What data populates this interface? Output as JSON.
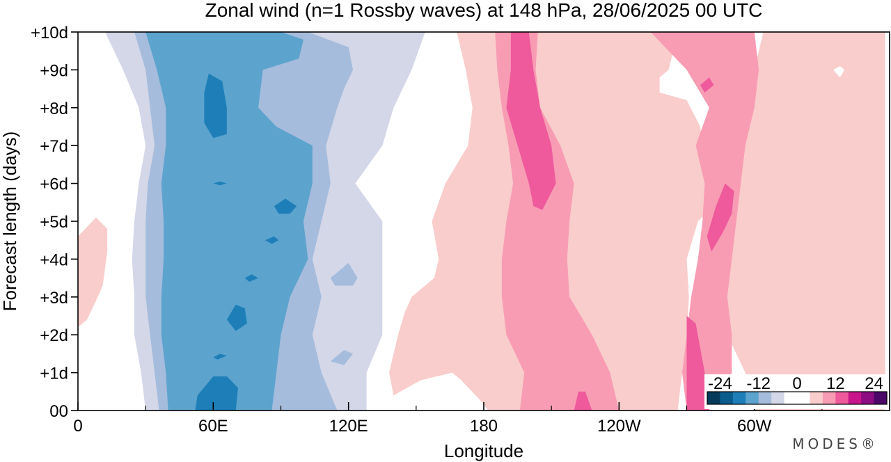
{
  "chart_data": {
    "type": "heatmap",
    "title": "Zonal wind (n=1 Rossby waves) at 148 hPa,  28/06/2025  00 UTC",
    "xlabel": "Longitude",
    "ylabel": "Forecast length (days)",
    "x_ticks": [
      "0",
      "60E",
      "120E",
      "180",
      "120W",
      "60W"
    ],
    "x_tick_values": [
      0,
      60,
      120,
      180,
      240,
      300
    ],
    "y_ticks": [
      "00",
      "+1d",
      "+2d",
      "+3d",
      "+4d",
      "+5d",
      "+6d",
      "+7d",
      "+8d",
      "+9d",
      "+10d"
    ],
    "xlim": [
      0,
      360
    ],
    "ylim": [
      0,
      10
    ],
    "colorbar": {
      "labels": [
        "-24",
        "-12",
        "0",
        "12",
        "24"
      ],
      "levels": [
        -28,
        -24,
        -20,
        -16,
        -12,
        -8,
        -4,
        4,
        8,
        12,
        16,
        20,
        24,
        28
      ],
      "colors": [
        "#063a5a",
        "#0a5c8c",
        "#1e7fb8",
        "#5ca3ce",
        "#a5bcdc",
        "#d4d7e8",
        "#ffffff",
        "#ffffff",
        "#f9cdcb",
        "#f89cb4",
        "#ee5a9c",
        "#c8168a",
        "#8e0c82",
        "#4b0868"
      ]
    },
    "bands": [
      {
        "name": "neg4",
        "level": -4,
        "color": "#d4d7e8",
        "polygon": [
          [
            12,
            10
          ],
          [
            33,
            10
          ],
          [
            60,
            10
          ],
          [
            90,
            10
          ],
          [
            125,
            10
          ],
          [
            154,
            10
          ],
          [
            148,
            9
          ],
          [
            140,
            8
          ],
          [
            135,
            7
          ],
          [
            123,
            6
          ],
          [
            135,
            5
          ],
          [
            135,
            4
          ],
          [
            135,
            3
          ],
          [
            135,
            2
          ],
          [
            128,
            1
          ],
          [
            128,
            0
          ],
          [
            30,
            0
          ],
          [
            28,
            1
          ],
          [
            25,
            2
          ],
          [
            25,
            3
          ],
          [
            24,
            4
          ],
          [
            25,
            5
          ],
          [
            27,
            6
          ],
          [
            30,
            7
          ],
          [
            27,
            8
          ],
          [
            20,
            9
          ]
        ]
      },
      {
        "name": "neg8",
        "level": -8,
        "color": "#a5bcdc",
        "polygon": [
          [
            25,
            10
          ],
          [
            54,
            10
          ],
          [
            80,
            10
          ],
          [
            102,
            10
          ],
          [
            120,
            9.6
          ],
          [
            122,
            9
          ],
          [
            118,
            8.5
          ],
          [
            115,
            8
          ],
          [
            110,
            7
          ],
          [
            112,
            6
          ],
          [
            108,
            5
          ],
          [
            104,
            4
          ],
          [
            108,
            3
          ],
          [
            104,
            2
          ],
          [
            108,
            1
          ],
          [
            115,
            0
          ],
          [
            36,
            0
          ],
          [
            34,
            1
          ],
          [
            32,
            2
          ],
          [
            30,
            3
          ],
          [
            30,
            4
          ],
          [
            30,
            5
          ],
          [
            31,
            6
          ],
          [
            34,
            7
          ],
          [
            32,
            8
          ],
          [
            30,
            9
          ]
        ]
      },
      {
        "name": "neg12",
        "level": -12,
        "color": "#5ca3ce",
        "polygon": [
          [
            30,
            10
          ],
          [
            60,
            10
          ],
          [
            90,
            10
          ],
          [
            100,
            9.8
          ],
          [
            98,
            9.3
          ],
          [
            82,
            9
          ],
          [
            80,
            8
          ],
          [
            88,
            7.5
          ],
          [
            104,
            7
          ],
          [
            104,
            6
          ],
          [
            100,
            5
          ],
          [
            102,
            4
          ],
          [
            94,
            3
          ],
          [
            90,
            2
          ],
          [
            88,
            1
          ],
          [
            86,
            0
          ],
          [
            40,
            0
          ],
          [
            39,
            1
          ],
          [
            37,
            2
          ],
          [
            37,
            3
          ],
          [
            38,
            4
          ],
          [
            38,
            5
          ],
          [
            37,
            6
          ],
          [
            39,
            7
          ],
          [
            39,
            8
          ],
          [
            35,
            9
          ]
        ]
      },
      {
        "name": "neg16a",
        "level": -16,
        "color": "#1e7fb8",
        "polygon": [
          [
            58,
            8.9
          ],
          [
            64,
            8.7
          ],
          [
            66,
            8
          ],
          [
            66,
            7.3
          ],
          [
            60,
            7.2
          ],
          [
            56,
            7.6
          ],
          [
            56,
            8.4
          ]
        ]
      },
      {
        "name": "neg16b",
        "level": -16,
        "color": "#1e7fb8",
        "polygon": [
          [
            52,
            0
          ],
          [
            70,
            0
          ],
          [
            71,
            0.6
          ],
          [
            66,
            0.9
          ],
          [
            60,
            0.9
          ],
          [
            53,
            0.4
          ]
        ]
      },
      {
        "name": "neg16c",
        "level": -16,
        "color": "#1e7fb8",
        "polygon": [
          [
            66,
            2.4
          ],
          [
            70,
            2.8
          ],
          [
            74,
            2.7
          ],
          [
            75,
            2.3
          ],
          [
            70,
            2.1
          ]
        ]
      },
      {
        "name": "neg16d",
        "level": -16,
        "color": "#1e7fb8",
        "polygon": [
          [
            87,
            5.4
          ],
          [
            92,
            5.6
          ],
          [
            97,
            5.4
          ],
          [
            94,
            5.2
          ],
          [
            89,
            5.2
          ]
        ]
      },
      {
        "name": "neg16e",
        "level": -16,
        "color": "#1e7fb8",
        "polygon": [
          [
            83,
            4.5
          ],
          [
            87,
            4.6
          ],
          [
            89,
            4.5
          ],
          [
            86,
            4.4
          ]
        ]
      },
      {
        "name": "neg16f",
        "level": -16,
        "color": "#1e7fb8",
        "polygon": [
          [
            74,
            3.5
          ],
          [
            77,
            3.6
          ],
          [
            80,
            3.5
          ],
          [
            76,
            3.4
          ]
        ]
      },
      {
        "name": "neg16g",
        "level": -16,
        "color": "#1e7fb8",
        "polygon": [
          [
            60,
            1.4
          ],
          [
            63,
            1.5
          ],
          [
            66,
            1.45
          ],
          [
            62,
            1.35
          ]
        ]
      },
      {
        "name": "neg16h",
        "level": -16,
        "color": "#1e7fb8",
        "polygon": [
          [
            60,
            6
          ],
          [
            63,
            6.05
          ],
          [
            66,
            6
          ],
          [
            63,
            5.95
          ]
        ]
      },
      {
        "name": "neg8i",
        "level": -8,
        "color": "#a5bcdc",
        "polygon": [
          [
            112,
            3.5
          ],
          [
            120,
            3.9
          ],
          [
            124,
            3.5
          ],
          [
            122,
            3.3
          ],
          [
            114,
            3.3
          ]
        ]
      },
      {
        "name": "neg8j",
        "level": -8,
        "color": "#a5bcdc",
        "polygon": [
          [
            112,
            1.3
          ],
          [
            118,
            1.6
          ],
          [
            122,
            1.5
          ],
          [
            118,
            1.2
          ]
        ]
      },
      {
        "name": "pos4",
        "level": 4,
        "color": "#f9cdcb",
        "polygon": [
          [
            168,
            10
          ],
          [
            210,
            10
          ],
          [
            238,
            10
          ],
          [
            254,
            10
          ],
          [
            266,
            10
          ],
          [
            264,
            9.5
          ],
          [
            262,
            9
          ],
          [
            258,
            8.8
          ],
          [
            258,
            8.4
          ],
          [
            270,
            8.2
          ],
          [
            276,
            7.5
          ],
          [
            278,
            6.7
          ],
          [
            282,
            5.4
          ],
          [
            275,
            5
          ],
          [
            270,
            4
          ],
          [
            271,
            3
          ],
          [
            270,
            2
          ],
          [
            268,
            1
          ],
          [
            266,
            0
          ],
          [
            358,
            0
          ],
          [
            358,
            1
          ],
          [
            358,
            2
          ],
          [
            358,
            3
          ],
          [
            358,
            4
          ],
          [
            358,
            5
          ],
          [
            358,
            6
          ],
          [
            358,
            7
          ],
          [
            358,
            8
          ],
          [
            358,
            9
          ],
          [
            358,
            10
          ],
          [
            304,
            10
          ],
          [
            300,
            9
          ],
          [
            296,
            8
          ],
          [
            292,
            7
          ],
          [
            290,
            6
          ],
          [
            283,
            5
          ],
          [
            282,
            4
          ],
          [
            280,
            3
          ],
          [
            288,
            2
          ],
          [
            296,
            1
          ],
          [
            300,
            0
          ],
          [
            182,
            0
          ],
          [
            178,
            0.3
          ],
          [
            170,
            0.8
          ],
          [
            166,
            1
          ],
          [
            152,
            0.8
          ],
          [
            140,
            0.4
          ],
          [
            138,
            1
          ],
          [
            142,
            2
          ],
          [
            145,
            2.6
          ],
          [
            148,
            3
          ],
          [
            158,
            3.5
          ],
          [
            160,
            4
          ],
          [
            157,
            5
          ],
          [
            163,
            6
          ],
          [
            173,
            7
          ],
          [
            175,
            8
          ],
          [
            172,
            9
          ]
        ]
      },
      {
        "name": "pos4w",
        "level": 4,
        "color": "#f9cdcb",
        "polygon": [
          [
            0,
            2.2
          ],
          [
            0,
            4.6
          ],
          [
            8,
            5.1
          ],
          [
            13,
            4.8
          ],
          [
            13,
            4.2
          ],
          [
            11,
            3.3
          ],
          [
            8,
            2.9
          ],
          [
            4,
            2.4
          ]
        ]
      },
      {
        "name": "pos8",
        "level": 8,
        "color": "#f89cb4",
        "polygon": [
          [
            185,
            10
          ],
          [
            204,
            10
          ],
          [
            203,
            9
          ],
          [
            205,
            8
          ],
          [
            214,
            7
          ],
          [
            220,
            6
          ],
          [
            218,
            5
          ],
          [
            217,
            4
          ],
          [
            218,
            3
          ],
          [
            228,
            2
          ],
          [
            236,
            1
          ],
          [
            240,
            0
          ],
          [
            196,
            0
          ],
          [
            198,
            1
          ],
          [
            190,
            2
          ],
          [
            188,
            3
          ],
          [
            188,
            4
          ],
          [
            190,
            5
          ],
          [
            193,
            6
          ],
          [
            191,
            7
          ],
          [
            188,
            8
          ],
          [
            186,
            9
          ]
        ]
      },
      {
        "name": "pos8e",
        "level": 8,
        "color": "#f89cb4",
        "polygon": [
          [
            254,
            10
          ],
          [
            278,
            10
          ],
          [
            300,
            10
          ],
          [
            302,
            9
          ],
          [
            300,
            8
          ],
          [
            296,
            7
          ],
          [
            294,
            6
          ],
          [
            292,
            5
          ],
          [
            290,
            4
          ],
          [
            288,
            3
          ],
          [
            290,
            2
          ],
          [
            290,
            1
          ],
          [
            280,
            0
          ],
          [
            270,
            0
          ],
          [
            268,
            1
          ],
          [
            270,
            2
          ],
          [
            272,
            3
          ],
          [
            275,
            4
          ],
          [
            277,
            5
          ],
          [
            278,
            6
          ],
          [
            274,
            7
          ],
          [
            280,
            8
          ],
          [
            270,
            9
          ]
        ]
      },
      {
        "name": "pos12a",
        "level": 12,
        "color": "#ee5a9c",
        "polygon": [
          [
            192,
            10
          ],
          [
            200,
            10
          ],
          [
            202,
            9
          ],
          [
            205,
            8
          ],
          [
            210,
            7
          ],
          [
            212,
            6
          ],
          [
            206,
            5.3
          ],
          [
            202,
            5.4
          ],
          [
            200,
            6
          ],
          [
            195,
            7
          ],
          [
            190,
            8
          ],
          [
            192,
            9
          ]
        ]
      },
      {
        "name": "pos12b",
        "level": 12,
        "color": "#ee5a9c",
        "polygon": [
          [
            287,
            6
          ],
          [
            291,
            5.8
          ],
          [
            290,
            5.2
          ],
          [
            286,
            4.7
          ],
          [
            281,
            4.2
          ],
          [
            279,
            4.6
          ],
          [
            283,
            5.4
          ]
        ]
      },
      {
        "name": "pos12c",
        "level": 12,
        "color": "#ee5a9c",
        "polygon": [
          [
            270,
            2.5
          ],
          [
            274,
            2.3
          ],
          [
            278,
            1
          ],
          [
            280,
            0
          ],
          [
            270,
            0
          ],
          [
            270,
            1.3
          ]
        ]
      },
      {
        "name": "pos12d",
        "level": 12,
        "color": "#ee5a9c",
        "polygon": [
          [
            220,
            0
          ],
          [
            228,
            0
          ],
          [
            225,
            0.5
          ],
          [
            222,
            0.5
          ]
        ]
      },
      {
        "name": "pos12e",
        "level": 12,
        "color": "#ee5a9c",
        "polygon": [
          [
            276,
            8.6
          ],
          [
            280,
            8.8
          ],
          [
            282,
            8.6
          ],
          [
            278,
            8.4
          ]
        ]
      },
      {
        "name": "zero1",
        "level": 0,
        "color": "#ffffff",
        "polygon": [
          [
            335,
            9
          ],
          [
            338,
            9.1
          ],
          [
            340,
            9
          ],
          [
            338,
            8.8
          ]
        ]
      }
    ]
  },
  "brand": "MODES®"
}
